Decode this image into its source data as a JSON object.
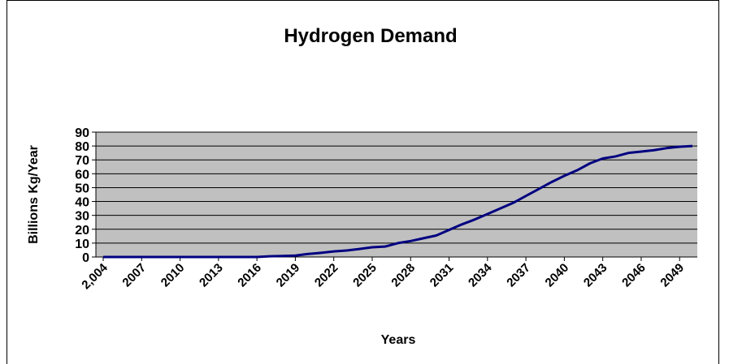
{
  "chart_data": {
    "type": "line",
    "title": "Hydrogen Demand",
    "x_label": "Years",
    "y_label": "Billions Kg/Year",
    "x": [
      2004,
      2005,
      2006,
      2007,
      2008,
      2009,
      2010,
      2011,
      2012,
      2013,
      2014,
      2015,
      2016,
      2017,
      2018,
      2019,
      2020,
      2021,
      2022,
      2023,
      2024,
      2025,
      2026,
      2027,
      2028,
      2029,
      2030,
      2031,
      2032,
      2033,
      2034,
      2035,
      2036,
      2037,
      2038,
      2039,
      2040,
      2041,
      2042,
      2043,
      2044,
      2045,
      2046,
      2047,
      2048,
      2049,
      2050
    ],
    "series": [
      {
        "name": "Hydrogen Demand",
        "color": "#000080",
        "values": [
          0,
          0,
          0,
          0,
          0,
          0,
          0,
          0,
          0,
          0,
          0,
          0,
          0,
          0.5,
          0.7,
          1,
          2.2,
          3,
          4,
          4.7,
          5.8,
          7,
          7.5,
          10,
          11.5,
          13.5,
          15.5,
          19.5,
          23.5,
          27,
          31,
          35,
          39,
          44,
          49,
          54,
          58.5,
          62.5,
          67.5,
          71,
          72.5,
          75,
          76,
          77,
          78.5,
          79.5,
          80
        ]
      }
    ],
    "xlim": [
      2004,
      2050
    ],
    "xticks": [
      {
        "value": 2004,
        "label": "2,004"
      },
      2007,
      2010,
      2013,
      2016,
      2019,
      2022,
      2025,
      2028,
      2031,
      2034,
      2037,
      2040,
      2043,
      2046,
      2049
    ],
    "ylim": [
      0,
      90
    ],
    "yticks": [
      0,
      10,
      20,
      30,
      40,
      50,
      60,
      70,
      80,
      90
    ],
    "grid": true,
    "plot_background": "#c0c0c0"
  }
}
